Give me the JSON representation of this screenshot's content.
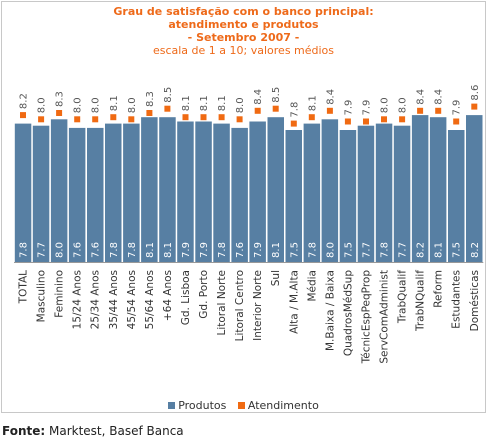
{
  "chart_data": {
    "type": "bar",
    "title_lines": [
      "Grau de satisfação com o banco principal:",
      "atendimento e produtos",
      "- Setembro 2007 -"
    ],
    "subtitle": "escala de 1 a 10; valores médios",
    "categories": [
      "TOTAL",
      "Masculino",
      "Feminino",
      "15/24 Anos",
      "25/34 Anos",
      "35/44 Anos",
      "45/54 Anos",
      "55/64 Anos",
      "+64 Anos",
      "Gd. Lisboa",
      "Gd. Porto",
      "Litoral Norte",
      "Litoral Centro",
      "Interior Norte",
      "Sul",
      "Alta / M.Alta",
      "Média",
      "M.Baixa / Baixa",
      "QuadrosMédSup",
      "TécnicEspPeqProp",
      "ServComAdminist",
      "TrabQualif",
      "TrabNQualif",
      "Reform",
      "Estudantes",
      "Domésticas"
    ],
    "series": [
      {
        "name": "Produtos",
        "type": "bar",
        "color": "#577fa3",
        "values": [
          7.8,
          7.7,
          8.0,
          7.6,
          7.6,
          7.8,
          7.8,
          8.1,
          8.1,
          7.9,
          7.9,
          7.8,
          7.6,
          7.9,
          8.1,
          7.5,
          7.8,
          8.0,
          7.5,
          7.7,
          7.8,
          7.7,
          8.2,
          8.1,
          7.5,
          8.2
        ]
      },
      {
        "name": "Atendimento",
        "type": "point",
        "color": "#f06a12",
        "values": [
          8.2,
          8.0,
          8.3,
          8.0,
          8.0,
          8.1,
          8.0,
          8.3,
          8.5,
          8.1,
          8.1,
          8.1,
          8.0,
          8.4,
          8.5,
          7.8,
          8.1,
          8.4,
          7.9,
          7.9,
          8.0,
          8.0,
          8.4,
          8.4,
          7.9,
          8.6
        ]
      }
    ],
    "ylim": [
      1,
      10
    ],
    "grid": false,
    "legend": "bottom"
  },
  "source": {
    "label": "Fonte:",
    "text": " Marktest, Basef Banca"
  }
}
